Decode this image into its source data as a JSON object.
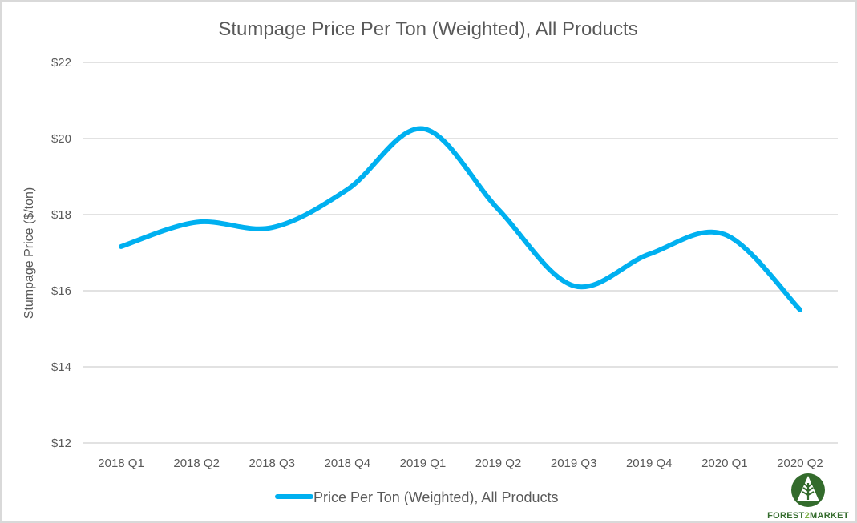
{
  "chart_data": {
    "type": "line",
    "title": "Stumpage Price Per Ton (Weighted), All Products",
    "xlabel": "",
    "ylabel": "Stumpage Price ($/ton)",
    "ylim": [
      12,
      22
    ],
    "ytick_step": 2,
    "ytick_labels": [
      "$12",
      "$14",
      "$16",
      "$18",
      "$20",
      "$22"
    ],
    "categories": [
      "2018 Q1",
      "2018 Q2",
      "2018 Q3",
      "2018 Q4",
      "2019 Q1",
      "2019 Q2",
      "2019 Q3",
      "2019 Q4",
      "2020 Q1",
      "2020 Q2"
    ],
    "series": [
      {
        "name": "Price Per Ton (Weighted), All Products",
        "color": "#00b0f0",
        "smooth": true,
        "values": [
          17.16,
          17.8,
          17.66,
          18.66,
          20.26,
          18.14,
          16.13,
          16.96,
          17.48,
          15.5
        ]
      }
    ],
    "grid": "horizontal",
    "legend_position": "bottom-center"
  },
  "logo": {
    "text_part1": "FOREST",
    "text_part2": "2",
    "text_part3": "MARKET",
    "color_dark": "#336b2c",
    "color_light": "#7fb24a"
  }
}
